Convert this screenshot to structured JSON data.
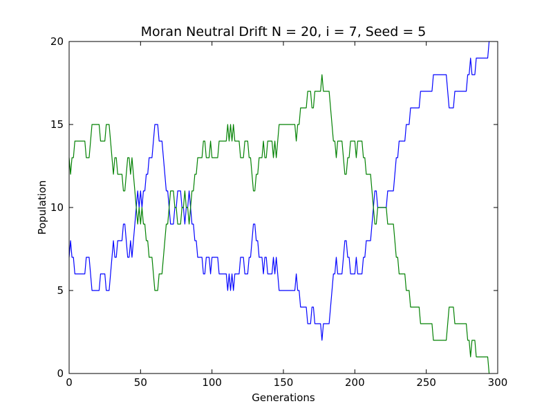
{
  "chart_data": {
    "type": "line",
    "title": "Moran Neutral Drift N = 20, i = 7, Seed = 5",
    "xlabel": "Generations",
    "ylabel": "Population",
    "xlim": [
      0,
      300
    ],
    "ylim": [
      0,
      20
    ],
    "xticks": [
      0,
      50,
      100,
      150,
      200,
      250,
      300
    ],
    "yticks": [
      0,
      5,
      10,
      15,
      20
    ],
    "grid": false,
    "legend": "none",
    "colors": {
      "series_a": "#0000ff",
      "series_b": "#008000"
    },
    "x": [
      0,
      1,
      2,
      3,
      4,
      5,
      6,
      7,
      8,
      9,
      10,
      11,
      12,
      13,
      14,
      15,
      16,
      17,
      18,
      19,
      20,
      21,
      22,
      23,
      24,
      25,
      26,
      27,
      28,
      29,
      30,
      31,
      32,
      33,
      34,
      35,
      36,
      37,
      38,
      39,
      40,
      41,
      42,
      43,
      44,
      45,
      46,
      47,
      48,
      49,
      50,
      51,
      52,
      53,
      54,
      55,
      56,
      57,
      58,
      59,
      60,
      61,
      62,
      63,
      64,
      65,
      66,
      67,
      68,
      69,
      70,
      71,
      72,
      73,
      74,
      75,
      76,
      77,
      78,
      79,
      80,
      81,
      82,
      83,
      84,
      85,
      86,
      87,
      88,
      89,
      90,
      91,
      92,
      93,
      94,
      95,
      96,
      97,
      98,
      99,
      100,
      101,
      102,
      103,
      104,
      105,
      106,
      107,
      108,
      109,
      110,
      111,
      112,
      113,
      114,
      115,
      116,
      117,
      118,
      119,
      120,
      121,
      122,
      123,
      124,
      125,
      126,
      127,
      128,
      129,
      130,
      131,
      132,
      133,
      134,
      135,
      136,
      137,
      138,
      139,
      140,
      141,
      142,
      143,
      144,
      145,
      146,
      147,
      148,
      149,
      150,
      151,
      152,
      153,
      154,
      155,
      156,
      157,
      158,
      159,
      160,
      161,
      162,
      163,
      164,
      165,
      166,
      167,
      168,
      169,
      170,
      171,
      172,
      173,
      174,
      175,
      176,
      177,
      178,
      179,
      180,
      181,
      182,
      183,
      184,
      185,
      186,
      187,
      188,
      189,
      190,
      191,
      192,
      193,
      194,
      195,
      196,
      197,
      198,
      199,
      200,
      201,
      202,
      203,
      204,
      205,
      206,
      207,
      208,
      209,
      210,
      211,
      212,
      213,
      214,
      215,
      216,
      217,
      218,
      219,
      220,
      221,
      222,
      223,
      224,
      225,
      226,
      227,
      228,
      229,
      230,
      231,
      232,
      233,
      234,
      235,
      236,
      237,
      238,
      239,
      240,
      241,
      242,
      243,
      244,
      245,
      246,
      247,
      248,
      249,
      250,
      251,
      252,
      253,
      254,
      255,
      256,
      257,
      258,
      259,
      260,
      261,
      262,
      263,
      264,
      265,
      266,
      267,
      268,
      269,
      270,
      271,
      272,
      273,
      274,
      275,
      276,
      277,
      278,
      279,
      280,
      281,
      282,
      283,
      284,
      285,
      286,
      287,
      288,
      289,
      290,
      291,
      292,
      293,
      294
    ],
    "series": [
      {
        "values": [
          7,
          8,
          7,
          7,
          6,
          6,
          6,
          6,
          6,
          6,
          6,
          6,
          7,
          7,
          7,
          6,
          5,
          5,
          5,
          5,
          5,
          5,
          6,
          6,
          6,
          6,
          5,
          5,
          5,
          6,
          7,
          8,
          7,
          7,
          8,
          8,
          8,
          8,
          9,
          9,
          8,
          7,
          7,
          8,
          7,
          8,
          9,
          10,
          11,
          10,
          11,
          10,
          11,
          11,
          12,
          12,
          13,
          13,
          13,
          14,
          15,
          15,
          15,
          14,
          14,
          14,
          13,
          12,
          11,
          11,
          10,
          9,
          9,
          9,
          10,
          10,
          11,
          11,
          11,
          10,
          10,
          9,
          10,
          10,
          11,
          10,
          9,
          9,
          8,
          8,
          7,
          7,
          7,
          7,
          6,
          6,
          7,
          7,
          7,
          6,
          7,
          7,
          7,
          7,
          7,
          6,
          6,
          6,
          6,
          6,
          6,
          5,
          6,
          5,
          6,
          5,
          6,
          6,
          6,
          6,
          7,
          7,
          7,
          6,
          6,
          6,
          7,
          7,
          8,
          9,
          9,
          8,
          8,
          7,
          7,
          7,
          6,
          7,
          7,
          6,
          6,
          6,
          6,
          7,
          6,
          7,
          6,
          5,
          5,
          5,
          5,
          5,
          5,
          5,
          5,
          5,
          5,
          5,
          5,
          6,
          5,
          5,
          4,
          4,
          4,
          4,
          4,
          3,
          3,
          3,
          4,
          4,
          3,
          3,
          3,
          3,
          3,
          2,
          3,
          3,
          3,
          3,
          3,
          4,
          5,
          6,
          6,
          7,
          6,
          6,
          6,
          6,
          7,
          8,
          8,
          7,
          7,
          6,
          6,
          6,
          6,
          7,
          6,
          6,
          6,
          6,
          7,
          7,
          8,
          8,
          8,
          8,
          9,
          10,
          11,
          11,
          10,
          10,
          10,
          10,
          10,
          10,
          10,
          11,
          11,
          11,
          11,
          11,
          12,
          13,
          13,
          14,
          14,
          14,
          14,
          14,
          15,
          15,
          15,
          16,
          16,
          16,
          16,
          16,
          16,
          16,
          17,
          17,
          17,
          17,
          17,
          17,
          17,
          17,
          17,
          18,
          18,
          18,
          18,
          18,
          18,
          18,
          18,
          18,
          18,
          17,
          16,
          16,
          16,
          16,
          17,
          17,
          17,
          17,
          17,
          17,
          17,
          17,
          17,
          18,
          18,
          19,
          18,
          18,
          18,
          19,
          19,
          19,
          19,
          19,
          19,
          19,
          19,
          19,
          20
        ]
      },
      {
        "values": [
          13,
          12,
          13,
          13,
          14,
          14,
          14,
          14,
          14,
          14,
          14,
          14,
          13,
          13,
          13,
          14,
          15,
          15,
          15,
          15,
          15,
          15,
          14,
          14,
          14,
          14,
          15,
          15,
          15,
          14,
          13,
          12,
          13,
          13,
          12,
          12,
          12,
          12,
          11,
          11,
          12,
          13,
          13,
          12,
          13,
          12,
          11,
          10,
          9,
          10,
          9,
          10,
          9,
          9,
          8,
          8,
          7,
          7,
          7,
          6,
          5,
          5,
          5,
          6,
          6,
          6,
          7,
          8,
          9,
          9,
          10,
          11,
          11,
          11,
          10,
          10,
          9,
          9,
          9,
          10,
          10,
          11,
          10,
          10,
          9,
          10,
          11,
          11,
          12,
          12,
          13,
          13,
          13,
          13,
          14,
          14,
          13,
          13,
          13,
          14,
          13,
          13,
          13,
          13,
          13,
          14,
          14,
          14,
          14,
          14,
          14,
          15,
          14,
          15,
          14,
          15,
          14,
          14,
          14,
          14,
          13,
          13,
          13,
          14,
          14,
          14,
          13,
          13,
          12,
          11,
          11,
          12,
          12,
          13,
          13,
          13,
          14,
          13,
          13,
          14,
          14,
          14,
          14,
          13,
          14,
          13,
          14,
          15,
          15,
          15,
          15,
          15,
          15,
          15,
          15,
          15,
          15,
          15,
          15,
          14,
          15,
          15,
          16,
          16,
          16,
          16,
          16,
          17,
          17,
          17,
          16,
          16,
          17,
          17,
          17,
          17,
          17,
          18,
          17,
          17,
          17,
          17,
          17,
          16,
          15,
          14,
          14,
          13,
          14,
          14,
          14,
          14,
          13,
          12,
          12,
          13,
          13,
          14,
          14,
          14,
          14,
          13,
          14,
          14,
          14,
          14,
          13,
          13,
          12,
          12,
          12,
          12,
          11,
          10,
          9,
          9,
          10,
          10,
          10,
          10,
          10,
          10,
          10,
          9,
          9,
          9,
          9,
          9,
          8,
          7,
          7,
          6,
          6,
          6,
          6,
          6,
          5,
          5,
          5,
          4,
          4,
          4,
          4,
          4,
          4,
          4,
          3,
          3,
          3,
          3,
          3,
          3,
          3,
          3,
          3,
          2,
          2,
          2,
          2,
          2,
          2,
          2,
          2,
          2,
          2,
          3,
          4,
          4,
          4,
          4,
          3,
          3,
          3,
          3,
          3,
          3,
          3,
          3,
          3,
          2,
          2,
          1,
          2,
          2,
          2,
          1,
          1,
          1,
          1,
          1,
          1,
          1,
          1,
          1,
          0
        ]
      }
    ]
  }
}
